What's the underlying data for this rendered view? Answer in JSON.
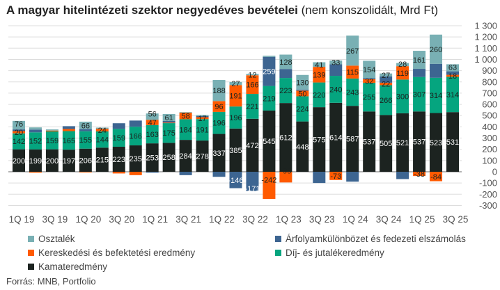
{
  "title_bold": "A magyar hitelintézeti szektor negyedéves bevételei",
  "title_rest": "(nem konszolidált, Mrd Ft)",
  "source": "Forrás: MNB, Portfolio",
  "chart_data": {
    "type": "stacked-bar",
    "ylim": [
      -300,
      1300
    ],
    "yticks": [
      "-300",
      "-200",
      "-100",
      "0",
      "100",
      "200",
      "300",
      "400",
      "500",
      "600",
      "700",
      "800",
      "900",
      "1 000",
      "1 100",
      "1 200",
      "1 300"
    ],
    "ytick_values": [
      -300,
      -200,
      -100,
      0,
      100,
      200,
      300,
      400,
      500,
      600,
      700,
      800,
      900,
      1000,
      1100,
      1200,
      1300
    ],
    "grid": true,
    "legend_position": "bottom",
    "categories": [
      "1Q 19",
      "2Q 19",
      "3Q 19",
      "4Q 19",
      "1Q 20",
      "2Q 20",
      "3Q 20",
      "4Q 20",
      "1Q 21",
      "2Q 21",
      "3Q 21",
      "4Q 21",
      "1Q 22",
      "2Q 22",
      "3Q 22",
      "4Q 22",
      "1Q 23",
      "2Q 23",
      "3Q 23",
      "4Q 23",
      "1Q 24",
      "2Q 24",
      "3Q 24",
      "4Q 24",
      "1Q 25",
      "2Q 25",
      "3Q 25"
    ],
    "xtick_labels": [
      "1Q 19",
      "",
      "3Q 19",
      "",
      "1Q 20",
      "",
      "3Q 20",
      "",
      "1Q 21",
      "",
      "3Q 21",
      "",
      "1Q 22",
      "",
      "3Q 22",
      "",
      "1Q 23",
      "",
      "3Q 23",
      "",
      "1Q 24",
      "",
      "3Q 24",
      "",
      "1Q 25",
      "",
      "3Q 25"
    ],
    "series": [
      {
        "name": "Kamateredmény",
        "color": "#1c2320",
        "label_color": "#ffffff",
        "values": [
          200,
          199,
          200,
          197,
          206,
          215,
          223,
          235,
          253,
          258,
          284,
          278,
          337,
          385,
          472,
          545,
          612,
          448,
          575,
          614,
          587,
          537,
          505,
          521,
          537,
          523,
          531
        ],
        "labels": [
          200,
          199,
          200,
          197,
          206,
          215,
          223,
          235,
          253,
          258,
          284,
          278,
          337,
          385,
          472,
          545,
          612,
          448,
          575,
          614,
          587,
          537,
          505,
          521,
          537,
          523,
          531
        ]
      },
      {
        "name": "Díj- és jutalékeredmény",
        "color": "#05a57f",
        "label_color": "#1c2320",
        "values": [
          142,
          152,
          159,
          165,
          155,
          144,
          159,
          166,
          163,
          175,
          184,
          191,
          196,
          196,
          221,
          219,
          223,
          224,
          220,
          240,
          243,
          255,
          266,
          300,
          307,
          314,
          314
        ],
        "labels": [
          142,
          152,
          159,
          165,
          155,
          144,
          159,
          166,
          163,
          175,
          184,
          191,
          196,
          196,
          221,
          219,
          223,
          224,
          220,
          240,
          243,
          255,
          266,
          300,
          307,
          314,
          314
        ]
      },
      {
        "name": "Kereskedési és befektetési eredmény",
        "color": "#ff5a00",
        "label_color": "#1c2320",
        "values": [
          20,
          -8,
          8,
          19,
          -6,
          24,
          -15,
          -30,
          47,
          5,
          58,
          17,
          96,
          191,
          166,
          -242,
          -95,
          50,
          139,
          -73,
          115,
          32,
          22,
          119,
          -38,
          -84,
          18
        ],
        "labels": [
          20,
          null,
          null,
          null,
          null,
          24,
          null,
          null,
          47,
          null,
          58,
          17,
          96,
          191,
          166,
          -242,
          -95,
          50,
          139,
          -73,
          115,
          32,
          22,
          119,
          -38,
          -84,
          18
        ]
      },
      {
        "name": "Árfolyamkülönbözet és fedezeti elszámolás",
        "color": "#3d6591",
        "label_color": "#ffffff",
        "values": [
          15,
          25,
          0,
          25,
          19,
          0,
          50,
          55,
          -8,
          15,
          -30,
          10,
          -45,
          -146,
          -171,
          259,
          80,
          10,
          -100,
          103,
          -88,
          10,
          55,
          -65,
          72,
          124,
          31
        ],
        "labels": [
          null,
          null,
          null,
          null,
          null,
          null,
          null,
          null,
          null,
          null,
          null,
          null,
          null,
          -146,
          -171,
          259,
          null,
          null,
          null,
          null,
          null,
          null,
          null,
          null,
          null,
          null,
          null
        ]
      },
      {
        "name": "Osztalék",
        "color": "#79b0b4",
        "label_color": "#1c2320",
        "values": [
          76,
          19,
          10,
          0,
          66,
          10,
          0,
          0,
          56,
          61,
          5,
          10,
          188,
          27,
          12,
          10,
          128,
          130,
          41,
          33,
          267,
          154,
          27,
          28,
          161,
          260,
          63
        ],
        "labels": [
          76,
          null,
          null,
          null,
          66,
          null,
          null,
          null,
          56,
          61,
          null,
          null,
          188,
          27,
          12,
          null,
          128,
          130,
          41,
          33,
          267,
          154,
          27,
          28,
          161,
          260,
          63
        ]
      }
    ]
  },
  "legend_order": [
    4,
    3,
    2,
    1,
    0
  ]
}
